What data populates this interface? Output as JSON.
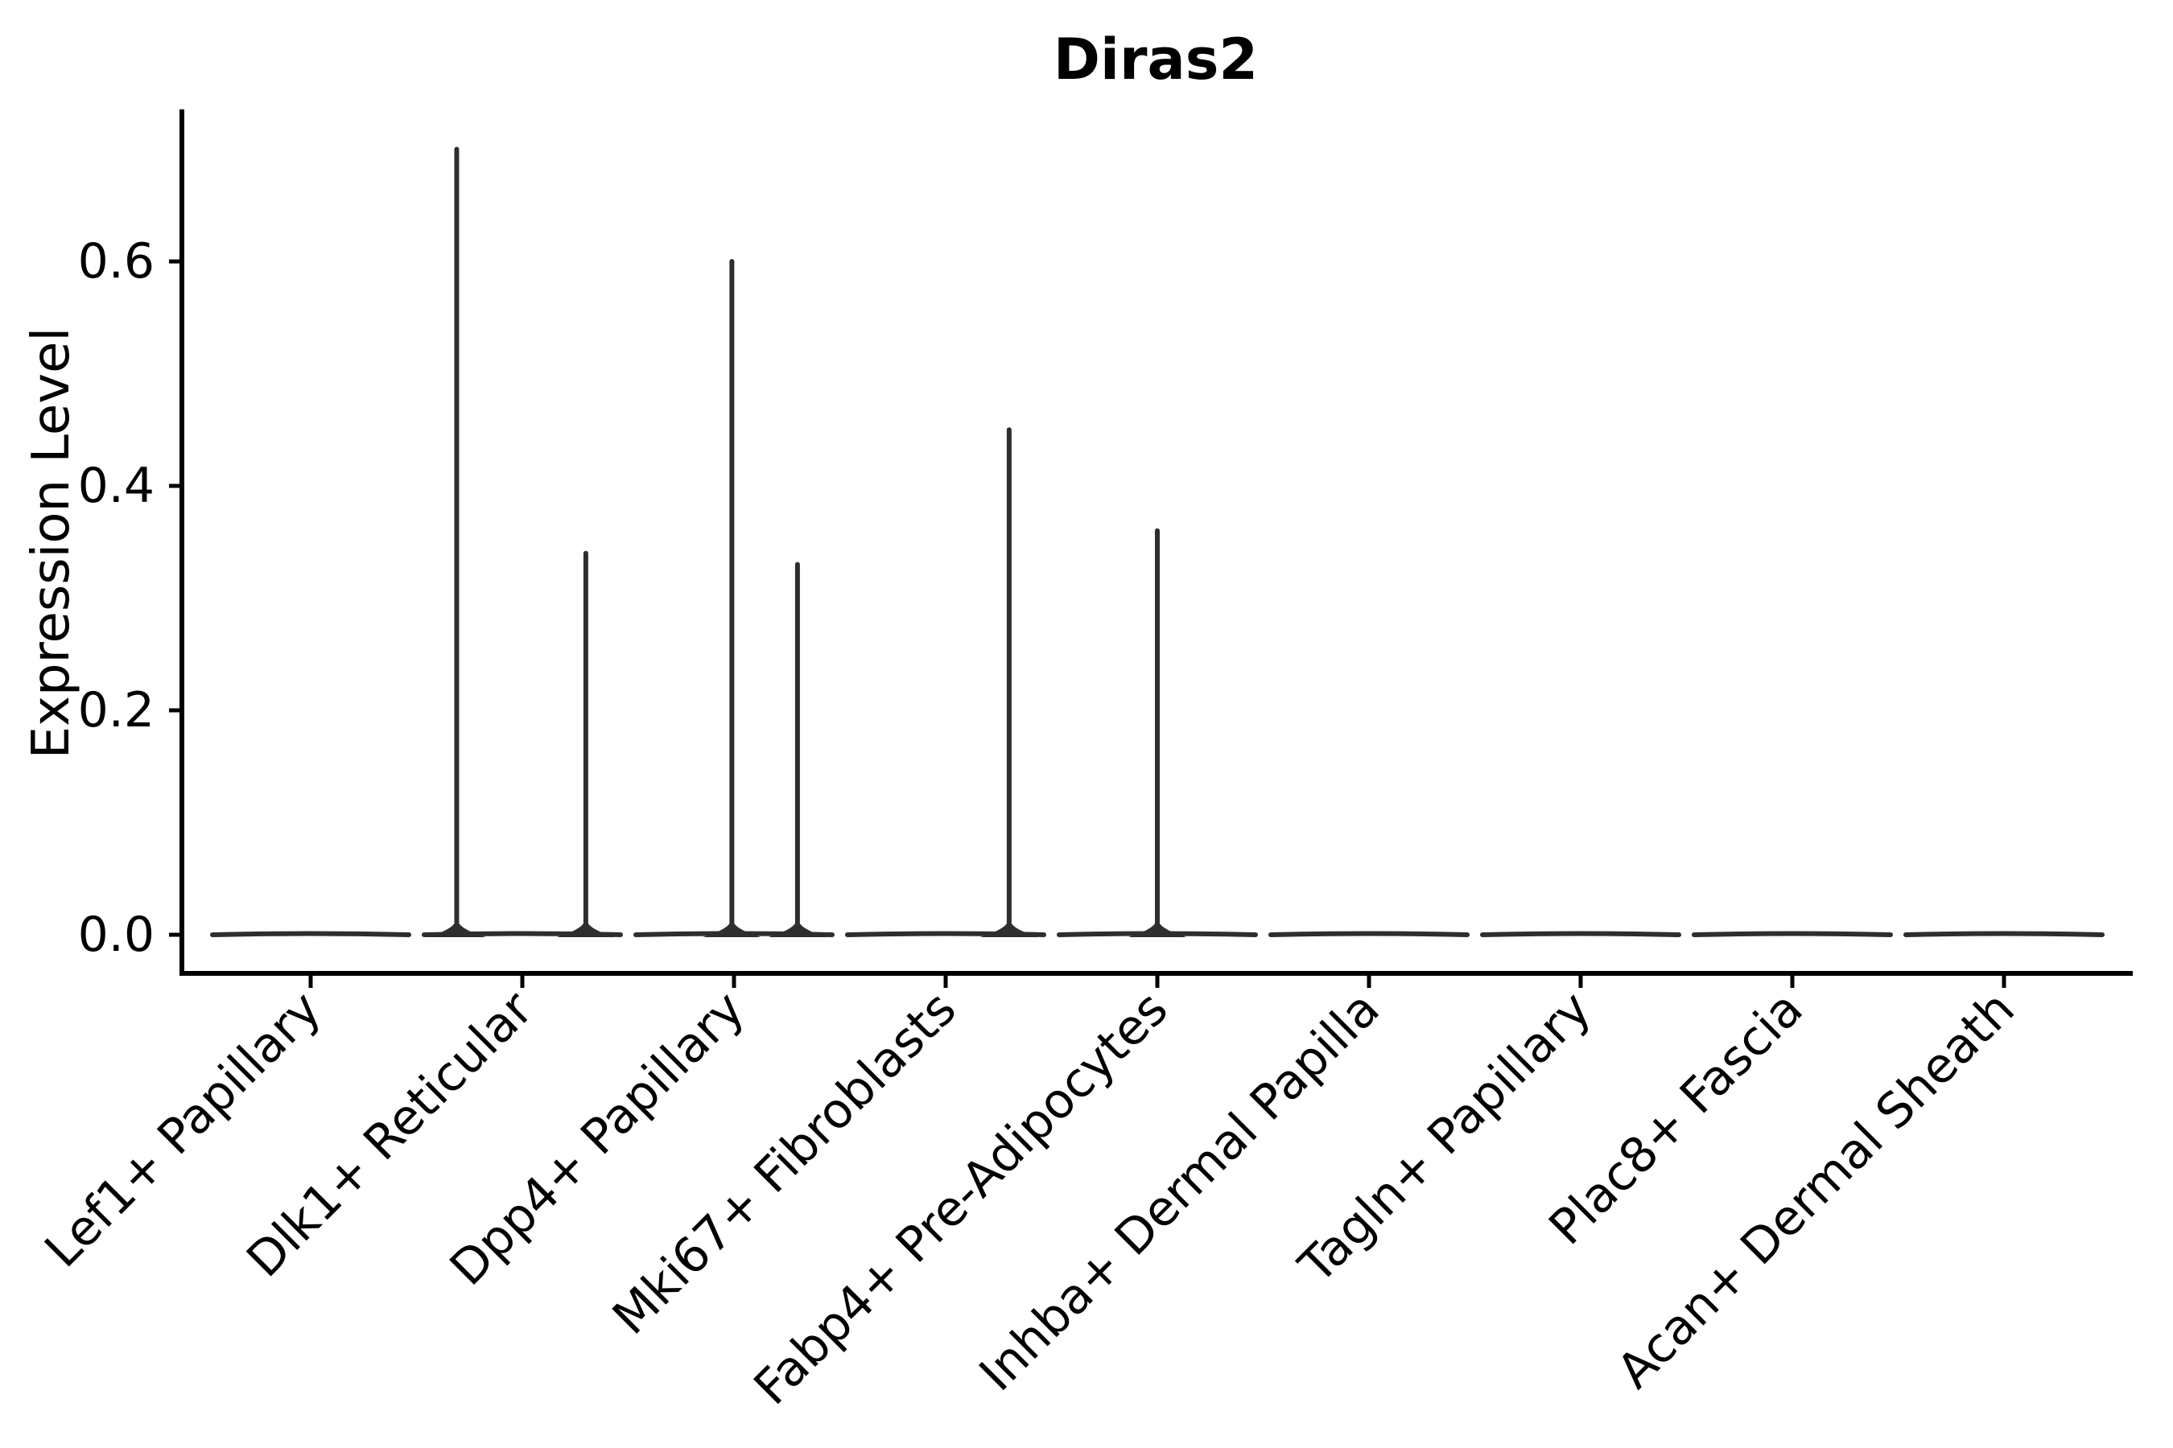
{
  "title": "Diras2",
  "y_axis_label": "Expression Level",
  "chart_data": {
    "type": "violin",
    "title": "Diras2",
    "xlabel": "",
    "ylabel": "Expression Level",
    "ylim": [
      -0.034,
      0.733
    ],
    "yticks": [
      0.0,
      0.2,
      0.4,
      0.6
    ],
    "ytick_labels": [
      "0.0",
      "0.2",
      "0.4",
      "0.6"
    ],
    "grid": false,
    "legend": "none",
    "background_color": "#ffffff",
    "axis_color": "#000000",
    "violin_color": "#2e2e2e",
    "categories": [
      "Lef1+ Papillary",
      "Dlk1+ Reticular",
      "Dpp4+ Papillary",
      "Mki67+ Fibroblasts",
      "Fabp4+ Pre-Adipocytes",
      "Inhba+ Dermal Papilla",
      "Tagln+ Papillary",
      "Plac8+ Fascia",
      "Acan+ Dermal Sheath"
    ],
    "violins": [
      {
        "category": "Lef1+ Papillary",
        "baseline_value": 0.0,
        "spikes": []
      },
      {
        "category": "Dlk1+ Reticular",
        "baseline_value": 0.0,
        "spikes": [
          {
            "offset": -0.31,
            "max": 0.7
          },
          {
            "offset": 0.3,
            "max": 0.34
          }
        ]
      },
      {
        "category": "Dpp4+ Papillary",
        "baseline_value": 0.0,
        "spikes": [
          {
            "offset": -0.01,
            "max": 0.6
          },
          {
            "offset": 0.3,
            "max": 0.33
          }
        ]
      },
      {
        "category": "Mki67+ Fibroblasts",
        "baseline_value": 0.0,
        "spikes": [
          {
            "offset": 0.3,
            "max": 0.45
          }
        ]
      },
      {
        "category": "Fabp4+ Pre-Adipocytes",
        "baseline_value": 0.0,
        "spikes": [
          {
            "offset": 0.0,
            "max": 0.36
          }
        ]
      },
      {
        "category": "Inhba+ Dermal Papilla",
        "baseline_value": 0.0,
        "spikes": []
      },
      {
        "category": "Tagln+ Papillary",
        "baseline_value": 0.0,
        "spikes": []
      },
      {
        "category": "Plac8+ Fascia",
        "baseline_value": 0.0,
        "spikes": []
      },
      {
        "category": "Acan+ Dermal Sheath",
        "baseline_value": 0.0,
        "spikes": []
      }
    ]
  }
}
